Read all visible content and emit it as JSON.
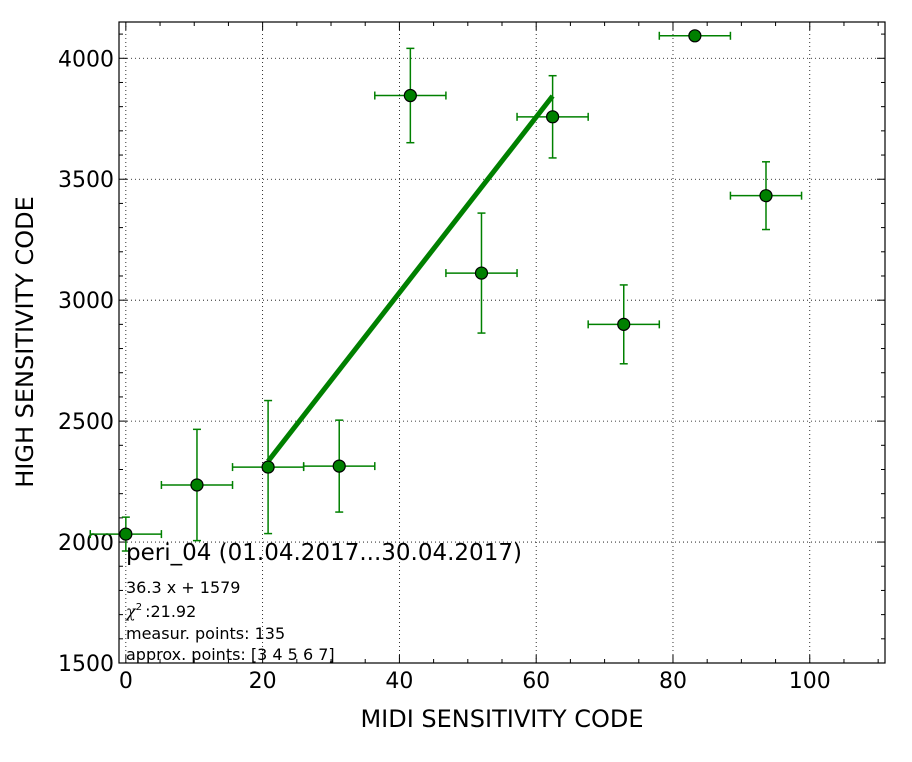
{
  "chart_data": {
    "type": "scatter",
    "title": "peri_04 (01.04.2017...30.04.2017)",
    "xlabel": "MIDI SENSITIVITY CODE",
    "ylabel": "HIGH SENSITIVITY CODE",
    "xlim": [
      -1,
      111
    ],
    "ylim": [
      1500,
      4150
    ],
    "x_ticks": [
      0,
      20,
      40,
      60,
      80,
      100
    ],
    "y_ticks": [
      1500,
      2000,
      2500,
      3000,
      3500,
      4000
    ],
    "x_tick_labels": [
      "0",
      "20",
      "40",
      "60",
      "80",
      "100"
    ],
    "y_tick_labels": [
      "1500",
      "2000",
      "2500",
      "3000",
      "3500",
      "4000"
    ],
    "grid": true,
    "series": [
      {
        "marker_color": "#008000",
        "points": [
          {
            "x": 0.0,
            "y": 2033,
            "xerr": 5.2,
            "yerr": 70
          },
          {
            "x": 10.4,
            "y": 2236,
            "xerr": 5.2,
            "yerr": 230
          },
          {
            "x": 20.8,
            "y": 2310,
            "xerr": 5.2,
            "yerr": 275
          },
          {
            "x": 31.2,
            "y": 2314,
            "xerr": 5.2,
            "yerr": 190
          },
          {
            "x": 41.6,
            "y": 3846,
            "xerr": 5.2,
            "yerr": 195
          },
          {
            "x": 52.0,
            "y": 3112,
            "xerr": 5.2,
            "yerr": 248
          },
          {
            "x": 62.4,
            "y": 3758,
            "xerr": 5.2,
            "yerr": 170
          },
          {
            "x": 72.8,
            "y": 2900,
            "xerr": 5.2,
            "yerr": 163
          },
          {
            "x": 83.2,
            "y": 4093,
            "xerr": 5.2,
            "yerr": 0
          },
          {
            "x": 93.6,
            "y": 3432,
            "xerr": 5.2,
            "yerr": 140
          }
        ]
      }
    ],
    "fit_line": {
      "slope": 36.3,
      "intercept": 1579,
      "x_start": 20.8,
      "x_end": 62.4,
      "color": "#008000"
    },
    "annotations": [
      "36.3 x + 1579",
      ":21.92",
      "measur. points: 135",
      "approx. points: [3 4 5 6 7]"
    ],
    "chi_symbol": "χ",
    "chi_power": "2"
  }
}
